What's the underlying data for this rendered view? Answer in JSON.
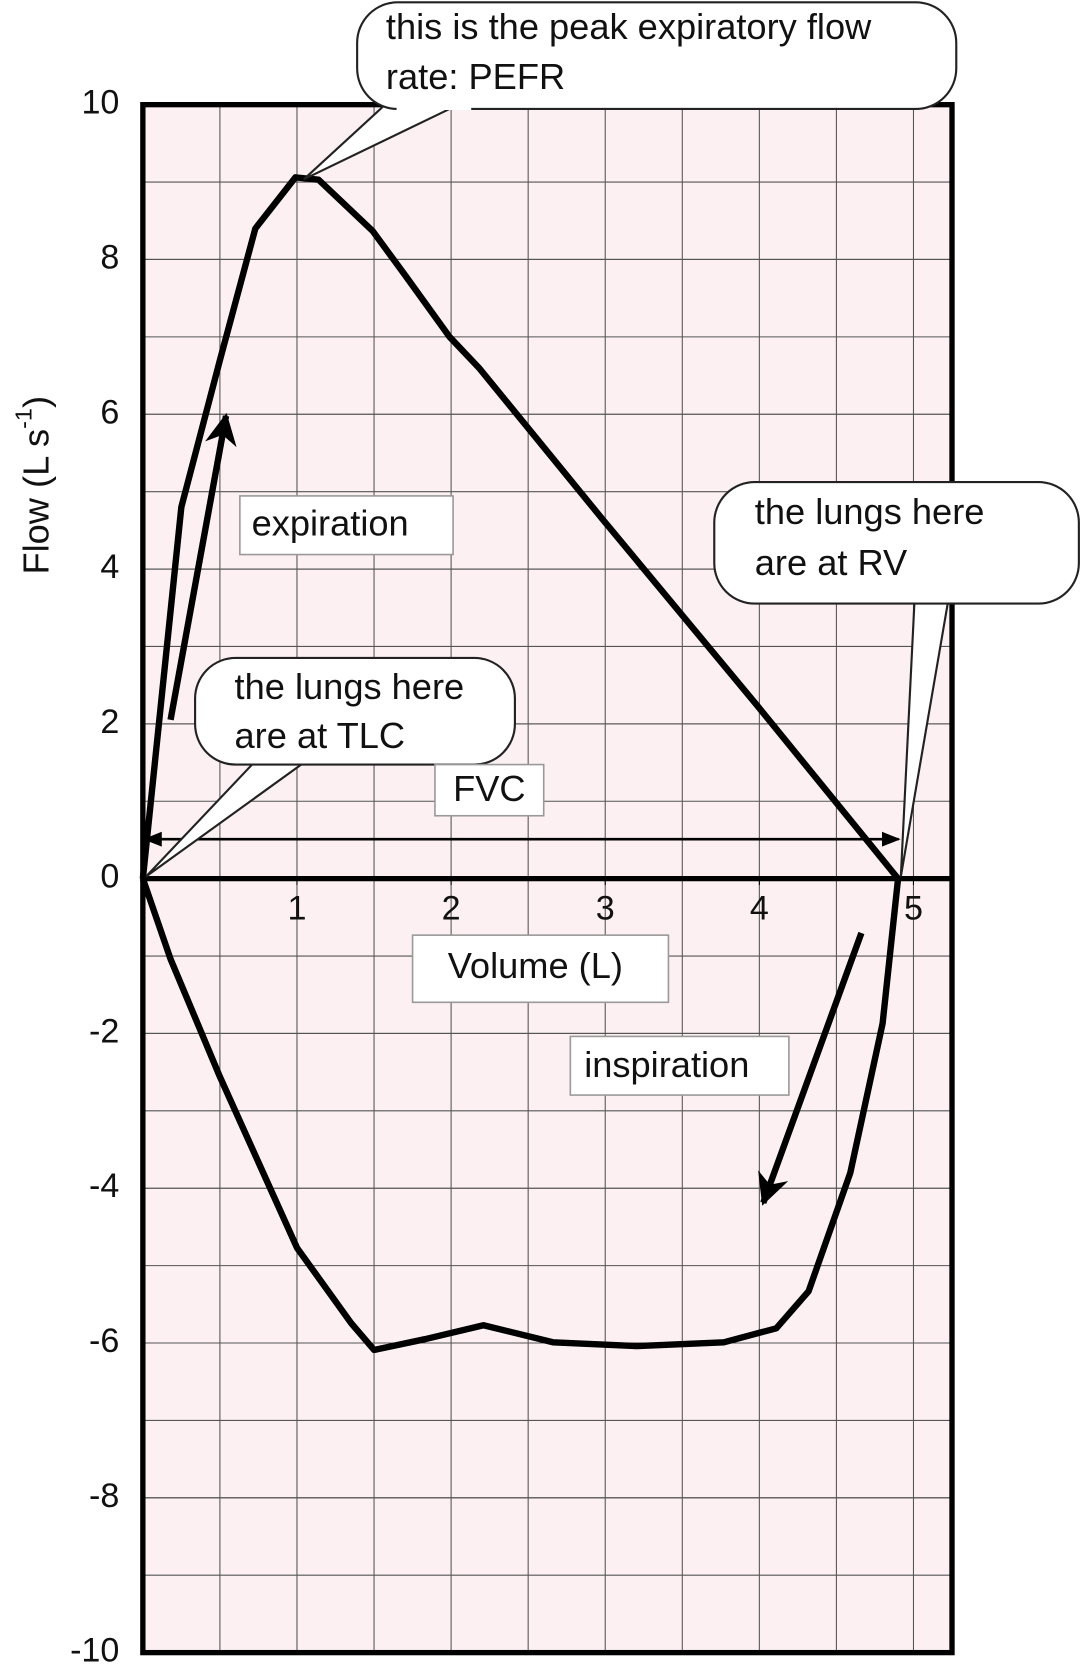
{
  "chart_data": {
    "type": "line",
    "x_label": "Volume (L)",
    "y_label": [
      "Flow (L s",
      "-1",
      ")"
    ],
    "x": [
      0,
      0.25,
      0.5,
      0.73,
      0.99,
      1.14,
      1.49,
      1.7,
      1.99,
      2.18,
      2.98,
      3.98,
      4.9,
      4.8,
      4.59,
      4.32,
      4.11,
      3.77,
      3.21,
      2.66,
      2.21,
      1.83,
      1.5,
      1.35,
      1.0,
      0.5,
      0.18,
      0
    ],
    "values": [
      0,
      4.8,
      6.7,
      8.4,
      9.06,
      9.03,
      8.37,
      7.8,
      7.0,
      6.6,
      4.65,
      2.25,
      0,
      -1.87,
      -3.8,
      -5.33,
      -5.81,
      -5.99,
      -6.04,
      -5.99,
      -5.77,
      -5.95,
      -6.09,
      -5.74,
      -4.77,
      -2.56,
      -1.04,
      0
    ],
    "color": "#000000",
    "xlim": [
      0,
      5.25
    ],
    "ylim": [
      -10,
      10
    ],
    "xticks": [
      1,
      2,
      3,
      4,
      5
    ],
    "yticks": [
      -10,
      -8,
      -6,
      -4,
      -2,
      0,
      2,
      4,
      6,
      8,
      10
    ],
    "xgrid": [
      0.5,
      1,
      1.5,
      2,
      2.5,
      3,
      3.5,
      4,
      4.5,
      5
    ],
    "ygrid": [
      -9,
      -8,
      -7,
      -6,
      -5,
      -4,
      -3,
      -2,
      -1,
      1,
      2,
      3,
      4,
      5,
      6,
      7,
      8,
      9
    ],
    "grid": true,
    "annotations": {
      "pefr": [
        "this is the peak expiratory flow",
        "rate:  PEFR"
      ],
      "rv": [
        "the lungs here",
        "are at RV"
      ],
      "tlc": [
        "the lungs here",
        "are at TLC"
      ],
      "expiration": "expiration",
      "inspiration": "inspiration",
      "fvc": "FVC"
    }
  }
}
